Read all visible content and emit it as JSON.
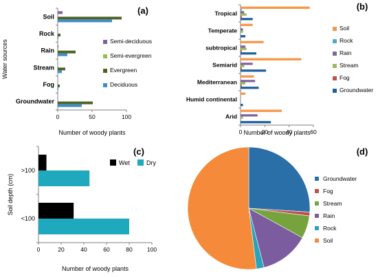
{
  "panels": [
    {
      "type": "bar",
      "orientation": "horizontal",
      "panel_label": "(a)",
      "ylabel": "Water sources",
      "xlabel": "Number of woody plants",
      "categories": [
        "Soil",
        "Rock",
        "Rain",
        "Stream",
        "Fog",
        "Groundwater"
      ],
      "xlim": [
        0,
        100
      ],
      "xticks": [
        0,
        50,
        100
      ],
      "legend_position": "right",
      "series": [
        {
          "name": "Semi-deciduous",
          "color": "#7F5FA6",
          "values": [
            7,
            0,
            1,
            0,
            0,
            0
          ]
        },
        {
          "name": "Semi-evergreen",
          "color": "#9BBB59",
          "values": [
            0,
            0,
            1,
            0,
            0,
            0
          ]
        },
        {
          "name": "Evergreen",
          "color": "#4F6228",
          "values": [
            93,
            4,
            26,
            11,
            3,
            51
          ]
        },
        {
          "name": "Deciduous",
          "color": "#3E8EC7",
          "values": [
            79,
            1,
            14,
            6,
            1,
            35
          ]
        }
      ]
    },
    {
      "type": "bar",
      "orientation": "horizontal",
      "panel_label": "(b)",
      "xlabel": "Number of woody plants",
      "categories": [
        "Tropical",
        "Temperate",
        "subtropical",
        "Semiarid",
        "Mediterranean",
        "Humid continental",
        "Arid"
      ],
      "xlim": [
        0,
        60
      ],
      "xticks": [
        0,
        20,
        40,
        60
      ],
      "legend_position": "right",
      "series": [
        {
          "name": "Soil",
          "color": "#F79646",
          "values": [
            57,
            10,
            19,
            50,
            11,
            4,
            34
          ]
        },
        {
          "name": "Rock",
          "color": "#4BACC6",
          "values": [
            1,
            0,
            0,
            0,
            0,
            0,
            0
          ]
        },
        {
          "name": "Rain",
          "color": "#8064A2",
          "values": [
            3,
            2,
            4,
            10,
            12,
            0,
            14
          ]
        },
        {
          "name": "Stream",
          "color": "#9BBB59",
          "values": [
            5,
            2,
            5,
            3,
            4,
            0,
            2
          ]
        },
        {
          "name": "Fog",
          "color": "#C0504D",
          "values": [
            1,
            0,
            1,
            1,
            1,
            0,
            0
          ]
        },
        {
          "name": "Groundwater",
          "color": "#1F5F9E",
          "values": [
            10,
            4,
            13,
            21,
            15,
            2,
            25
          ]
        }
      ]
    },
    {
      "type": "bar",
      "orientation": "horizontal",
      "panel_label": "(c)",
      "ylabel": "Soil depth (cm)",
      "xlabel": "Number of woody plants",
      "categories": [
        ">100",
        "<100"
      ],
      "xlim": [
        0,
        100
      ],
      "xticks": [
        0,
        20,
        40,
        60,
        80,
        100
      ],
      "legend_position": "top-right",
      "series": [
        {
          "name": "Wet",
          "color": "#000000",
          "values": [
            7,
            31
          ]
        },
        {
          "name": "Dry",
          "color": "#1FA9BE",
          "values": [
            45,
            80
          ]
        }
      ]
    },
    {
      "type": "pie",
      "panel_label": "(d)",
      "legend_position": "right",
      "labels": [
        "Groundwater",
        "Fog",
        "Stream",
        "Rain",
        "Rock",
        "Soil"
      ],
      "colors": [
        "#2A6FA8",
        "#C0504D",
        "#77A33D",
        "#7A5C9F",
        "#2AA3B8",
        "#F58A3A"
      ],
      "values": [
        26,
        1,
        6,
        13,
        2,
        52
      ]
    }
  ]
}
